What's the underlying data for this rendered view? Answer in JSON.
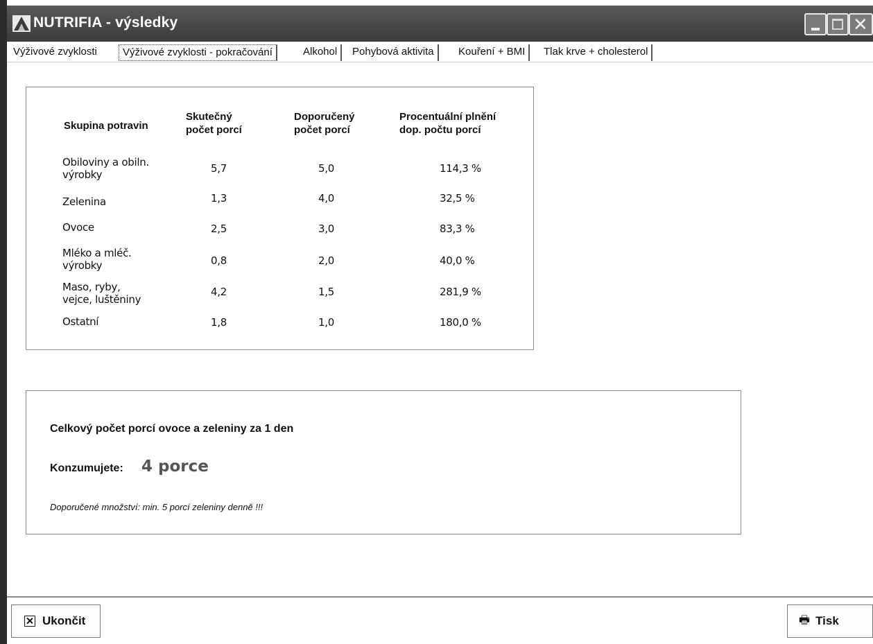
{
  "window": {
    "title": "NUTRIFIA - výsledky",
    "icons": {
      "app": "app-logo-icon",
      "minimize": "minimize-icon",
      "maximize": "maximize-icon",
      "close": "close-icon"
    },
    "close_glyph": "✕"
  },
  "tabs": [
    {
      "label": "Výživové zvyklosti",
      "active": false
    },
    {
      "label": "Výživové zvyklosti - pokračování",
      "active": true
    },
    {
      "label": "Alkohol",
      "active": false
    },
    {
      "label": "Pohybová aktivita",
      "active": false
    },
    {
      "label": "Kouření + BMI",
      "active": false
    },
    {
      "label": "Tlak krve + cholesterol",
      "active": false
    }
  ],
  "table": {
    "headers": {
      "group": "Skupina potravin",
      "actual_1": "Skutečný",
      "actual_2": "počet porcí",
      "recommended_1": "Doporučený",
      "recommended_2": "počet porcí",
      "percent_1": "Procentuální plnění",
      "percent_2": "dop. počtu porcí"
    },
    "rows": [
      {
        "group_1": "Obiloviny a obiln.",
        "group_2": "výrobky",
        "actual": "5,7",
        "recommended": "5,0",
        "percent": "114,3 %"
      },
      {
        "group_1": "Zelenina",
        "group_2": "",
        "actual": "1,3",
        "recommended": "4,0",
        "percent": "32,5 %"
      },
      {
        "group_1": "Ovoce",
        "group_2": "",
        "actual": "2,5",
        "recommended": "3,0",
        "percent": "83,3 %"
      },
      {
        "group_1": "Mléko a mléč.",
        "group_2": "výrobky",
        "actual": "0,8",
        "recommended": "2,0",
        "percent": "40,0 %"
      },
      {
        "group_1": "Maso, ryby,",
        "group_2": "vejce, luštěniny",
        "actual": "4,2",
        "recommended": "1,5",
        "percent": "281,9 %"
      },
      {
        "group_1": "Ostatní",
        "group_2": "",
        "actual": "1,8",
        "recommended": "1,0",
        "percent": "180,0 %"
      }
    ]
  },
  "summary": {
    "heading": "Celkový počet porcí ovoce a zeleniny za 1 den",
    "label": "Konzumujete:",
    "value": "4 porce",
    "note": "Doporučené množství: min. 5 porcí zeleniny denně !!!"
  },
  "buttons": {
    "exit_label": "Ukončit",
    "exit_icon": "close-box-icon",
    "print_label": "Tisk",
    "print_icon": "printer-icon",
    "print_glyph": "🖶"
  }
}
